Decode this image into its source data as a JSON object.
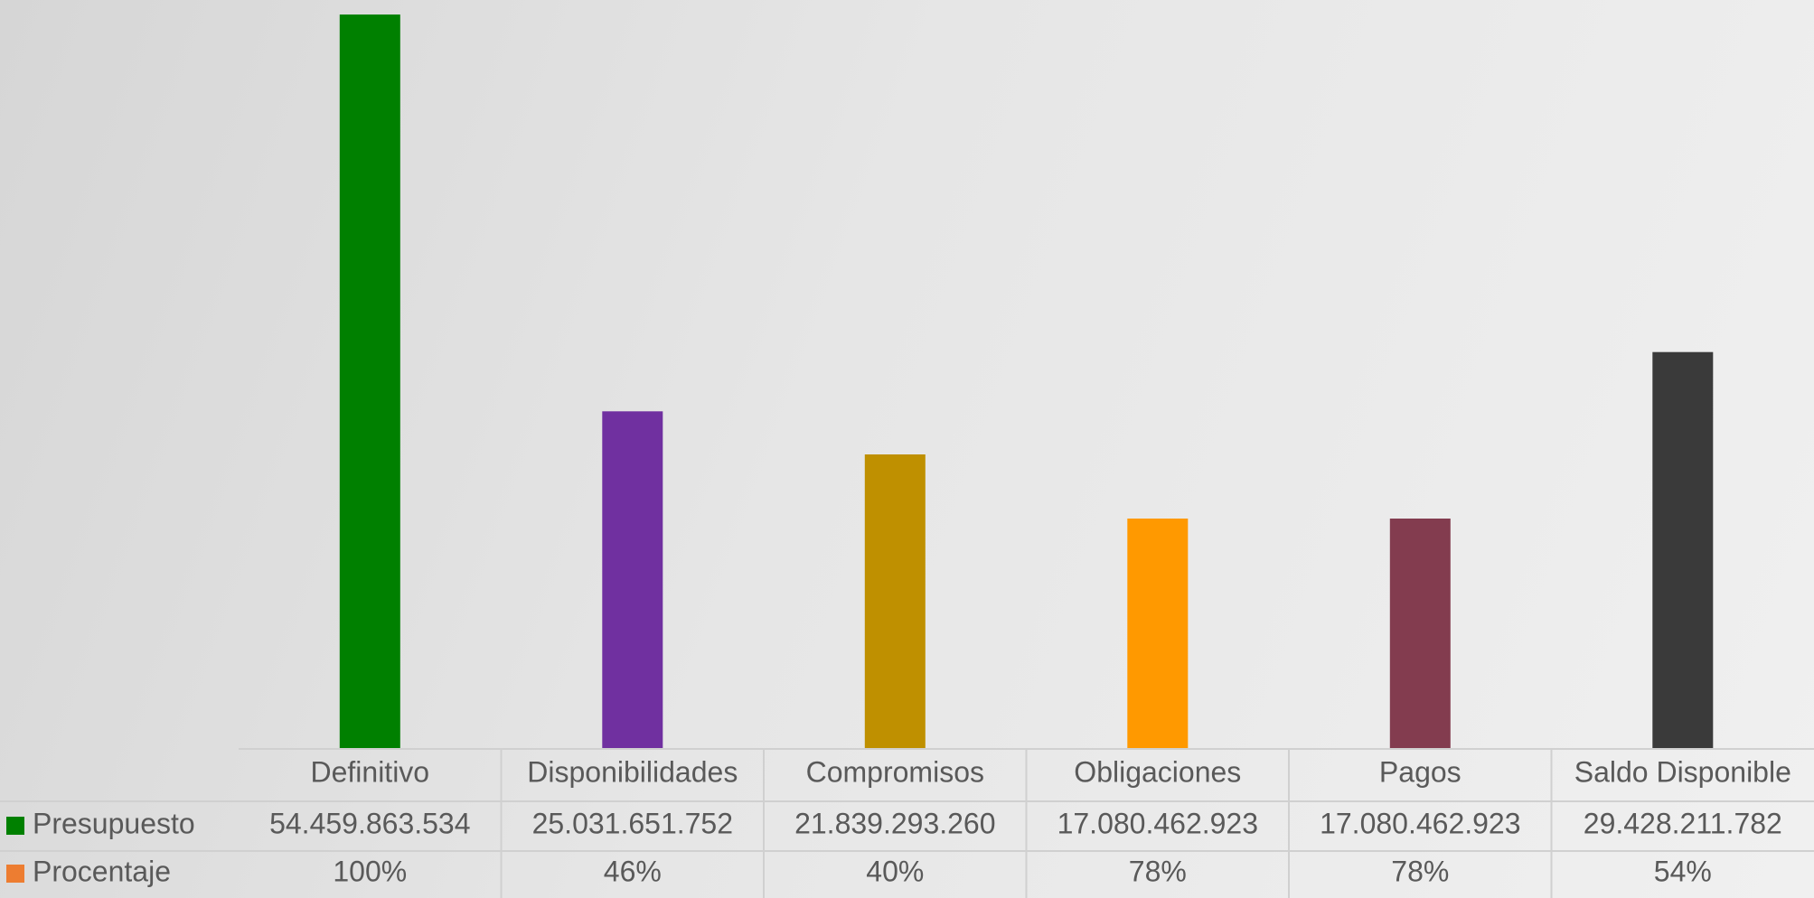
{
  "chart_data": {
    "type": "bar",
    "categories": [
      "Definitivo",
      "Disponibilidades",
      "Compromisos",
      "Obligaciones",
      "Pagos",
      "Saldo Disponible"
    ],
    "series": [
      {
        "name": "Presupuesto",
        "values": [
          54459863534,
          25031651752,
          21839293260,
          17080462923,
          17080462923,
          29428211782
        ],
        "labels": [
          "54.459.863.534",
          "25.031.651.752",
          "21.839.293.260",
          "17.080.462.923",
          "17.080.462.923",
          "29.428.211.782"
        ]
      },
      {
        "name": "Procentaje",
        "labels": [
          "100%",
          "46%",
          "40%",
          "78%",
          "78%",
          "54%"
        ]
      }
    ],
    "bar_colors": [
      "#008000",
      "#7030A0",
      "#BF9000",
      "#FF9900",
      "#833C4F",
      "#3A3A3A"
    ],
    "legend_colors": [
      "#008000",
      "#ED7D31"
    ],
    "ylim": [
      0,
      55000000000
    ],
    "grid": false,
    "legend": "data-table"
  }
}
